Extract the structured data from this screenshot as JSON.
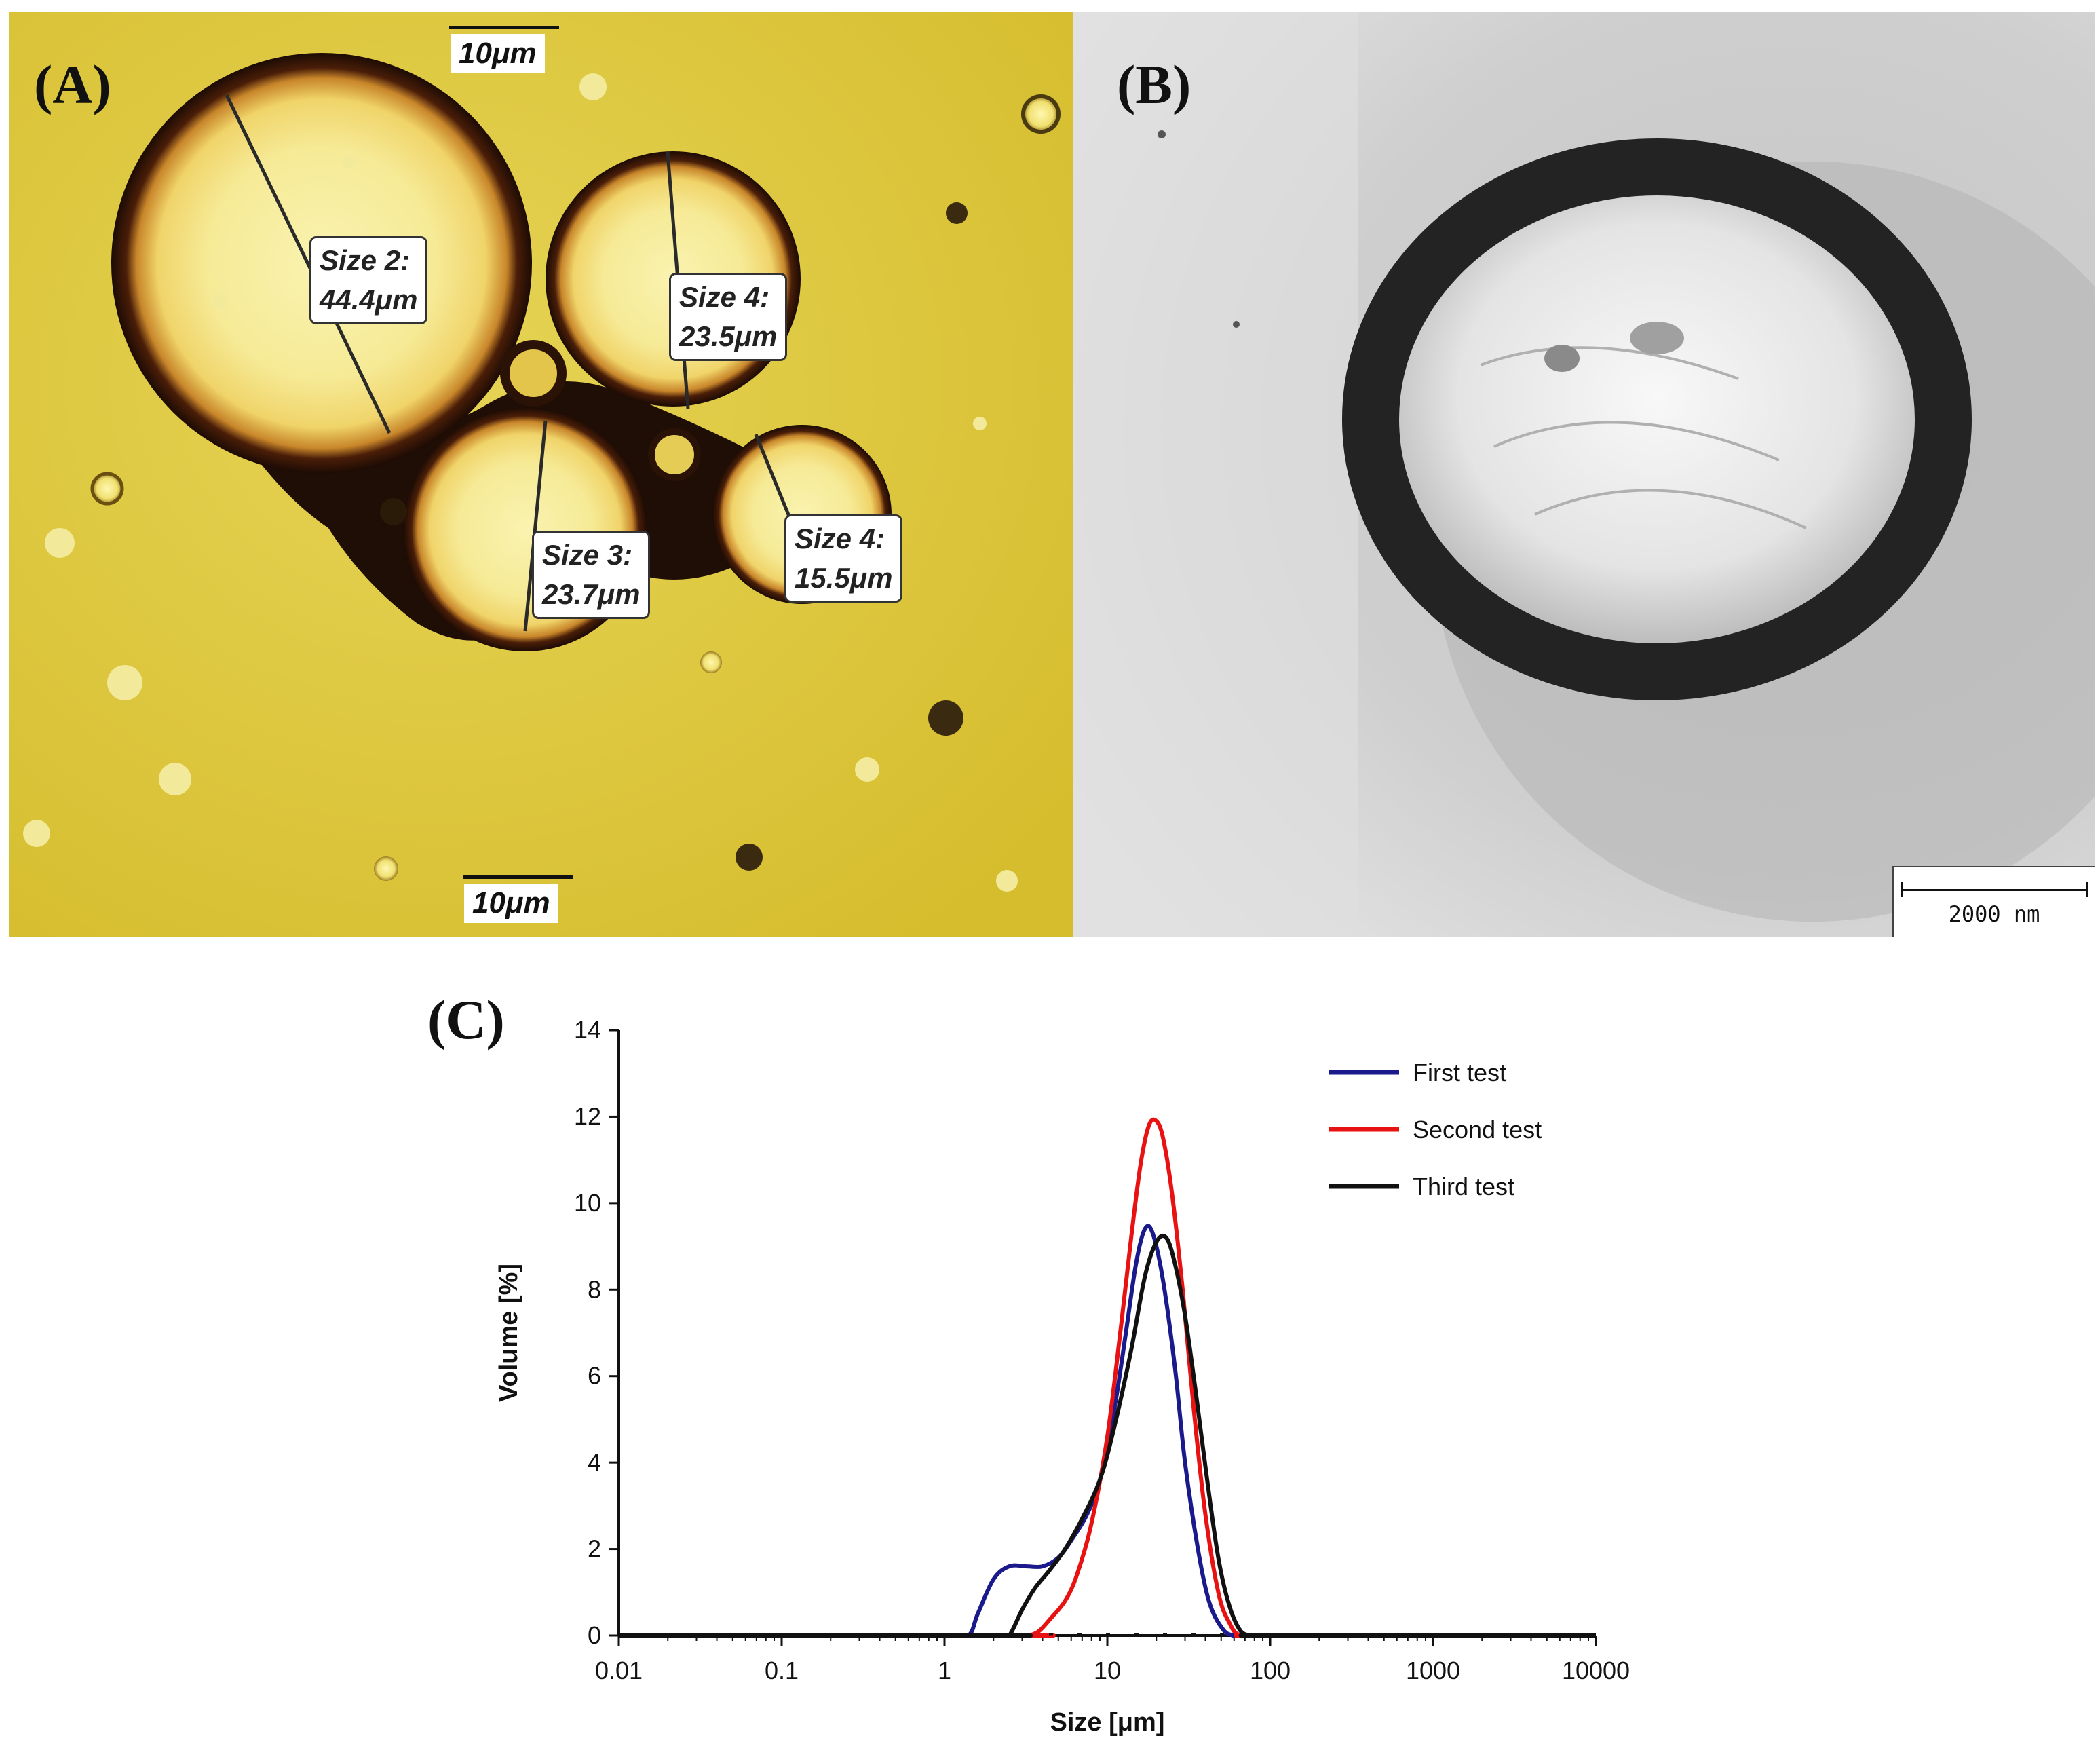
{
  "panel_a": {
    "letter": "(A)",
    "scale_top": "10μm",
    "scale_bottom": "10μm",
    "measurements": [
      {
        "label": "Size 2:",
        "value": "44.4μm"
      },
      {
        "label": "Size 4:",
        "value": "23.5μm"
      },
      {
        "label": "Size 3:",
        "value": "23.7μm"
      },
      {
        "label": "Size 4:",
        "value": "15.5μm"
      }
    ],
    "colors": {
      "background": "#dcc63a",
      "droplet_edge": "#1e0e06",
      "droplet_inner": "#f8ef9e"
    }
  },
  "panel_b": {
    "letter": "(B)",
    "scale_label": "2000 nm",
    "colors": {
      "background": "#d8d8d8",
      "ring": "#232323",
      "core": "#f2f2f2"
    }
  },
  "panel_c": {
    "letter": "(C)"
  },
  "chart_data": {
    "type": "line",
    "xlabel": "Size [μm]",
    "ylabel": "Volume  [%]",
    "xscale": "log",
    "xlim": [
      0.01,
      10000
    ],
    "ylim": [
      0,
      14
    ],
    "x_ticks": [
      "0.01",
      "0.1",
      "1",
      "10",
      "100",
      "1000",
      "10000"
    ],
    "y_ticks": [
      "0",
      "2",
      "4",
      "6",
      "8",
      "10",
      "12",
      "14"
    ],
    "legend_position": "top-right",
    "series": [
      {
        "name": "First test",
        "color": "#1a1a8c",
        "points": [
          [
            0.01,
            0
          ],
          [
            1.0,
            0
          ],
          [
            1.4,
            0
          ],
          [
            1.6,
            0.5
          ],
          [
            2.0,
            1.3
          ],
          [
            2.5,
            1.6
          ],
          [
            3.2,
            1.6
          ],
          [
            4.0,
            1.6
          ],
          [
            5.0,
            1.8
          ],
          [
            6.0,
            2.2
          ],
          [
            7.5,
            2.8
          ],
          [
            9.0,
            3.6
          ],
          [
            11,
            5.2
          ],
          [
            13,
            7.0
          ],
          [
            15,
            8.6
          ],
          [
            17,
            9.4
          ],
          [
            19,
            9.3
          ],
          [
            22,
            8.2
          ],
          [
            26,
            6.2
          ],
          [
            30,
            4.0
          ],
          [
            36,
            2.0
          ],
          [
            42,
            0.8
          ],
          [
            50,
            0.2
          ],
          [
            60,
            0
          ],
          [
            100,
            0
          ],
          [
            10000,
            0
          ]
        ]
      },
      {
        "name": "Second test",
        "color": "#e81212",
        "points": [
          [
            0.01,
            0
          ],
          [
            3.0,
            0
          ],
          [
            3.3,
            0
          ],
          [
            3.8,
            0.1
          ],
          [
            4.5,
            0.4
          ],
          [
            5.5,
            0.8
          ],
          [
            6.5,
            1.4
          ],
          [
            8.0,
            2.6
          ],
          [
            10,
            4.6
          ],
          [
            12,
            7.0
          ],
          [
            14,
            9.2
          ],
          [
            16,
            10.9
          ],
          [
            18,
            11.8
          ],
          [
            20,
            11.9
          ],
          [
            22,
            11.5
          ],
          [
            25,
            10.2
          ],
          [
            29,
            8.0
          ],
          [
            34,
            5.2
          ],
          [
            40,
            2.8
          ],
          [
            48,
            1.0
          ],
          [
            56,
            0.3
          ],
          [
            66,
            0
          ],
          [
            100,
            0
          ],
          [
            10000,
            0
          ]
        ]
      },
      {
        "name": "Third test",
        "color": "#111111",
        "points": [
          [
            0.01,
            0
          ],
          [
            2.2,
            0
          ],
          [
            2.5,
            0
          ],
          [
            3.0,
            0.6
          ],
          [
            3.6,
            1.1
          ],
          [
            4.4,
            1.5
          ],
          [
            5.5,
            2.0
          ],
          [
            7.0,
            2.7
          ],
          [
            9.0,
            3.6
          ],
          [
            11,
            4.8
          ],
          [
            14,
            6.6
          ],
          [
            17,
            8.3
          ],
          [
            20,
            9.1
          ],
          [
            23,
            9.2
          ],
          [
            26,
            8.6
          ],
          [
            30,
            7.4
          ],
          [
            35,
            5.6
          ],
          [
            41,
            3.6
          ],
          [
            48,
            1.8
          ],
          [
            56,
            0.7
          ],
          [
            66,
            0.1
          ],
          [
            78,
            0
          ],
          [
            100,
            0
          ],
          [
            10000,
            0
          ]
        ]
      }
    ]
  }
}
